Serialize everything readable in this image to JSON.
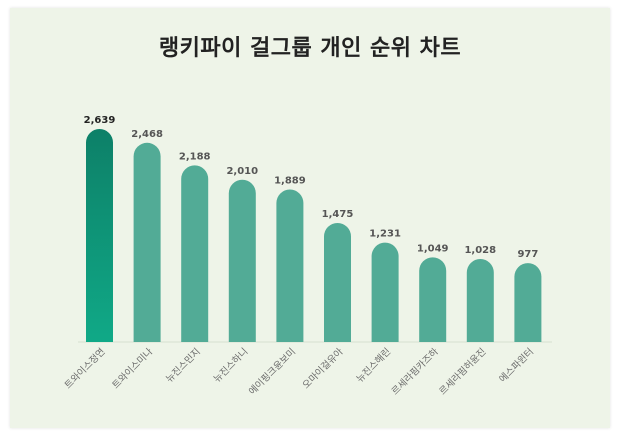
{
  "chart_data": {
    "type": "bar",
    "title": "랭키파이 걸그룹 개인 순위 차트",
    "categories": [
      "트와이스정연",
      "트와이스미나",
      "뉴진스민지",
      "뉴진스하니",
      "에이핑크윤보미",
      "오마이걸유아",
      "뉴진스해린",
      "르세라핌카즈하",
      "르세라핌허윤진",
      "에스파윈터"
    ],
    "values": [
      2639,
      2468,
      2188,
      2010,
      1889,
      1475,
      1231,
      1049,
      1028,
      977
    ],
    "value_labels": [
      "2,639",
      "2,468",
      "2,188",
      "2,010",
      "1,889",
      "1,475",
      "1,231",
      "1,049",
      "1,028",
      "977"
    ],
    "ylim": [
      0,
      2800
    ],
    "grid": false,
    "colors": {
      "bar": "#52ab96",
      "highlight_top": "#0d8068",
      "highlight_bottom": "#10a987",
      "background": "#eef4e8"
    }
  }
}
